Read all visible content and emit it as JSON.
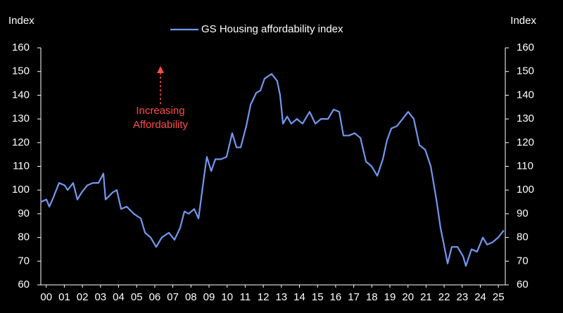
{
  "chart_data": {
    "type": "line",
    "ylabel": "Index",
    "y2label": "Index",
    "legend": "top",
    "annotation": [
      "Increasing",
      "Affordability"
    ],
    "annotation_color": "#ff4b4b",
    "series": [
      {
        "name": "GS Housing affordability index",
        "color": "#7397ef",
        "x": [
          2000.0,
          2000.31,
          2000.47,
          2000.7,
          2001.01,
          2001.32,
          2001.48,
          2001.79,
          2002.02,
          2002.26,
          2002.57,
          2002.88,
          2003.19,
          2003.46,
          2003.58,
          2003.97,
          2004.2,
          2004.44,
          2004.75,
          2005.14,
          2005.53,
          2005.76,
          2006.07,
          2006.38,
          2006.69,
          2007.08,
          2007.39,
          2007.7,
          2007.94,
          2008.17,
          2008.48,
          2008.72,
          2009.03,
          2009.18,
          2009.42,
          2009.65,
          2009.96,
          2010.27,
          2010.58,
          2010.82,
          2011.05,
          2011.36,
          2011.6,
          2011.91,
          2012.14,
          2012.37,
          2012.76,
          2013.07,
          2013.23,
          2013.39,
          2013.62,
          2013.85,
          2014.16,
          2014.47,
          2014.86,
          2015.18,
          2015.49,
          2015.88,
          2016.19,
          2016.5,
          2016.73,
          2017.04,
          2017.35,
          2017.67,
          2017.98,
          2018.29,
          2018.6,
          2018.91,
          2019.14,
          2019.38,
          2019.69,
          2020.0,
          2020.31,
          2020.62,
          2020.93,
          2021.25,
          2021.56,
          2021.87,
          2022.1,
          2022.26,
          2022.49,
          2022.72,
          2023.04,
          2023.35,
          2023.5,
          2023.81,
          2024.12,
          2024.44,
          2024.67,
          2024.98,
          2025.29,
          2025.6
        ],
        "values": [
          95,
          96,
          93,
          97,
          103,
          102,
          100,
          103,
          96,
          99,
          102,
          103,
          103,
          107,
          96,
          99,
          100,
          92,
          93,
          90,
          88,
          82,
          80,
          76,
          80,
          82,
          79,
          84,
          91,
          90,
          92,
          88,
          106,
          114,
          108,
          113,
          113,
          114,
          124,
          118,
          118,
          127,
          136,
          141,
          142,
          147,
          149,
          146,
          140,
          128,
          131,
          128,
          130,
          128,
          133,
          128,
          130,
          130,
          134,
          133,
          123,
          123,
          124,
          122,
          112,
          110,
          106,
          113,
          121,
          126,
          127,
          130,
          133,
          130,
          119,
          117,
          110,
          96,
          84,
          78,
          69,
          76,
          76,
          72,
          68,
          75,
          74,
          80,
          77,
          78,
          80,
          83
        ]
      }
    ],
    "xlim": [
      2000,
      2025.68
    ],
    "xticks": [
      {
        "value": 2000.3,
        "label": "00"
      },
      {
        "value": 2001.3,
        "label": "01"
      },
      {
        "value": 2002.3,
        "label": "02"
      },
      {
        "value": 2003.3,
        "label": "03"
      },
      {
        "value": 2004.3,
        "label": "04"
      },
      {
        "value": 2005.3,
        "label": "05"
      },
      {
        "value": 2006.3,
        "label": "06"
      },
      {
        "value": 2007.3,
        "label": "07"
      },
      {
        "value": 2008.3,
        "label": "08"
      },
      {
        "value": 2009.3,
        "label": "09"
      },
      {
        "value": 2010.3,
        "label": "10"
      },
      {
        "value": 2011.3,
        "label": "11"
      },
      {
        "value": 2012.3,
        "label": "12"
      },
      {
        "value": 2013.3,
        "label": "13"
      },
      {
        "value": 2014.3,
        "label": "14"
      },
      {
        "value": 2015.3,
        "label": "15"
      },
      {
        "value": 2016.3,
        "label": "16"
      },
      {
        "value": 2017.3,
        "label": "17"
      },
      {
        "value": 2018.3,
        "label": "18"
      },
      {
        "value": 2019.3,
        "label": "19"
      },
      {
        "value": 2020.3,
        "label": "20"
      },
      {
        "value": 2021.3,
        "label": "21"
      },
      {
        "value": 2022.3,
        "label": "22"
      },
      {
        "value": 2023.3,
        "label": "23"
      },
      {
        "value": 2024.3,
        "label": "24"
      },
      {
        "value": 2025.3,
        "label": "25"
      }
    ],
    "ylim": [
      60,
      160
    ],
    "yticks": [
      60,
      70,
      80,
      90,
      100,
      110,
      120,
      130,
      140,
      150,
      160
    ],
    "y2lim": [
      60,
      160
    ],
    "y2ticks": [
      60,
      70,
      80,
      90,
      100,
      110,
      120,
      130,
      140,
      150,
      160
    ]
  }
}
